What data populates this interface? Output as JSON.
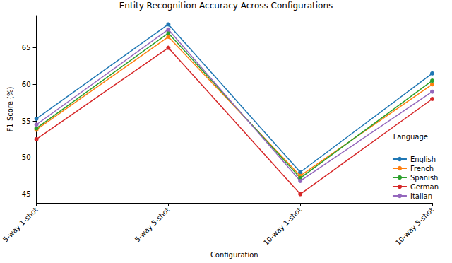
{
  "chart_data": {
    "type": "line",
    "title": "Entity Recognition Accuracy Across Configurations",
    "x_label": "Configuration",
    "y_label": "F1 Score (%)",
    "legend_title": "Language",
    "categories": [
      "5-way 1-shot",
      "5-way 5-shot",
      "10-way 1-shot",
      "10-way 5-shot"
    ],
    "series": [
      {
        "name": "English",
        "color": "#1f77b4",
        "values": [
          55.3,
          68.2,
          48.0,
          61.5
        ]
      },
      {
        "name": "French",
        "color": "#ff7f0e",
        "values": [
          53.8,
          66.5,
          47.5,
          60.0
        ]
      },
      {
        "name": "Spanish",
        "color": "#2ca02c",
        "values": [
          54.0,
          67.0,
          47.2,
          60.5
        ]
      },
      {
        "name": "German",
        "color": "#d62728",
        "values": [
          52.5,
          65.0,
          45.0,
          58.0
        ]
      },
      {
        "name": "Italian",
        "color": "#9467bd",
        "values": [
          54.5,
          67.5,
          46.8,
          59.0
        ]
      }
    ],
    "ylim": [
      43.8,
      69.4
    ],
    "yticks": [
      45,
      50,
      55,
      60,
      65
    ],
    "grid": false,
    "legend": "lower right",
    "marker": "circle",
    "line_style": "solid"
  }
}
